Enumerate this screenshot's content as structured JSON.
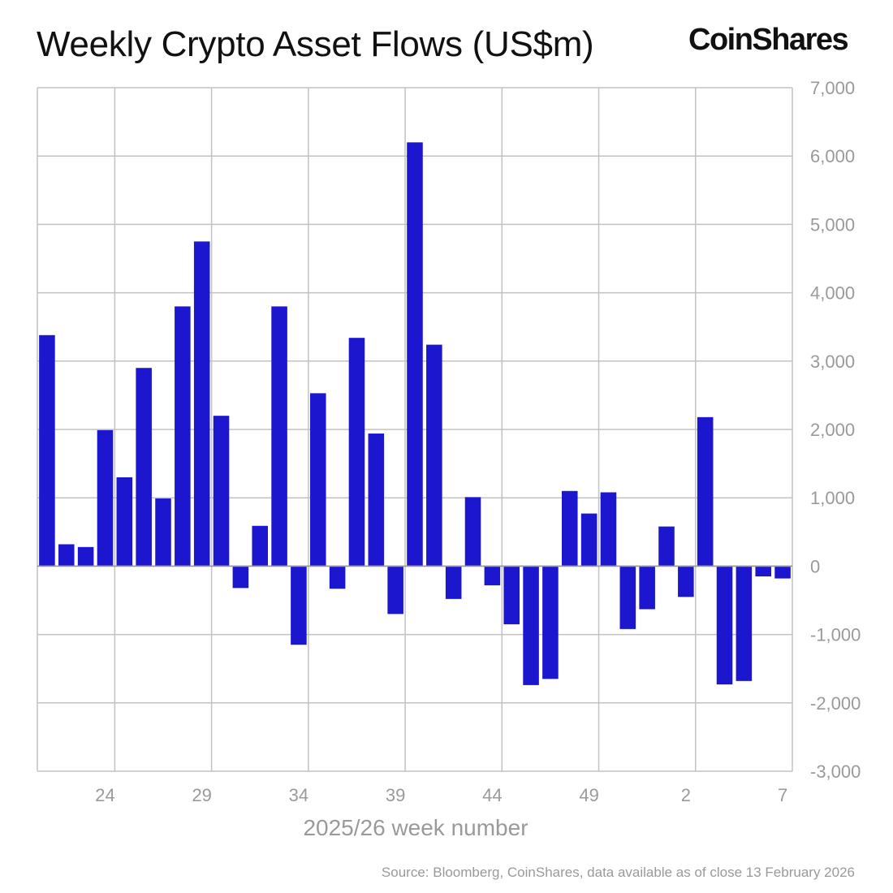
{
  "header": {
    "title": "Weekly Crypto Asset Flows (US$m)",
    "brand": "CoinShares"
  },
  "footer": {
    "source": "Source: Bloomberg, CoinShares, data available as of close 13 February 2026"
  },
  "colors": {
    "bar": "#1c17cf",
    "grid": "#c2c2c2",
    "zero_line": "#9a9a9a",
    "text_muted": "#9a9a9a"
  },
  "chart_data": {
    "type": "bar",
    "title": "Weekly Crypto Asset Flows (US$m)",
    "xlabel": "2025/26 week number",
    "ylabel": "",
    "ylim": [
      -3000,
      7000
    ],
    "yticks": [
      7000,
      6000,
      5000,
      4000,
      3000,
      2000,
      1000,
      0,
      -1000,
      -2000,
      -3000
    ],
    "ytick_labels": [
      "7,000",
      "6,000",
      "5,000",
      "4,000",
      "3,000",
      "2,000",
      "1,000",
      "0",
      "-1,000",
      "-2,000",
      "-3,000"
    ],
    "y_axis_side": "right",
    "grid": true,
    "legend": "none",
    "categories": [
      "21",
      "22",
      "23",
      "24",
      "25",
      "26",
      "27",
      "28",
      "29",
      "30",
      "31",
      "32",
      "33",
      "34",
      "35",
      "36",
      "37",
      "38",
      "39",
      "40",
      "41",
      "42",
      "43",
      "44",
      "45",
      "46",
      "47",
      "48",
      "49",
      "50",
      "51",
      "52",
      "1",
      "2",
      "3",
      "4",
      "5",
      "6",
      "7"
    ],
    "xtick_labels": [
      "24",
      "29",
      "34",
      "39",
      "44",
      "49",
      "2",
      "7"
    ],
    "values": [
      3380,
      320,
      280,
      1990,
      1300,
      2900,
      990,
      3800,
      4750,
      2200,
      -320,
      590,
      3800,
      -1150,
      2530,
      -330,
      3340,
      1940,
      -700,
      6200,
      3240,
      -480,
      1010,
      -280,
      -850,
      -1740,
      -1650,
      1100,
      770,
      1080,
      -920,
      -630,
      580,
      -450,
      2180,
      -1730,
      -1680,
      -150,
      -180
    ]
  }
}
